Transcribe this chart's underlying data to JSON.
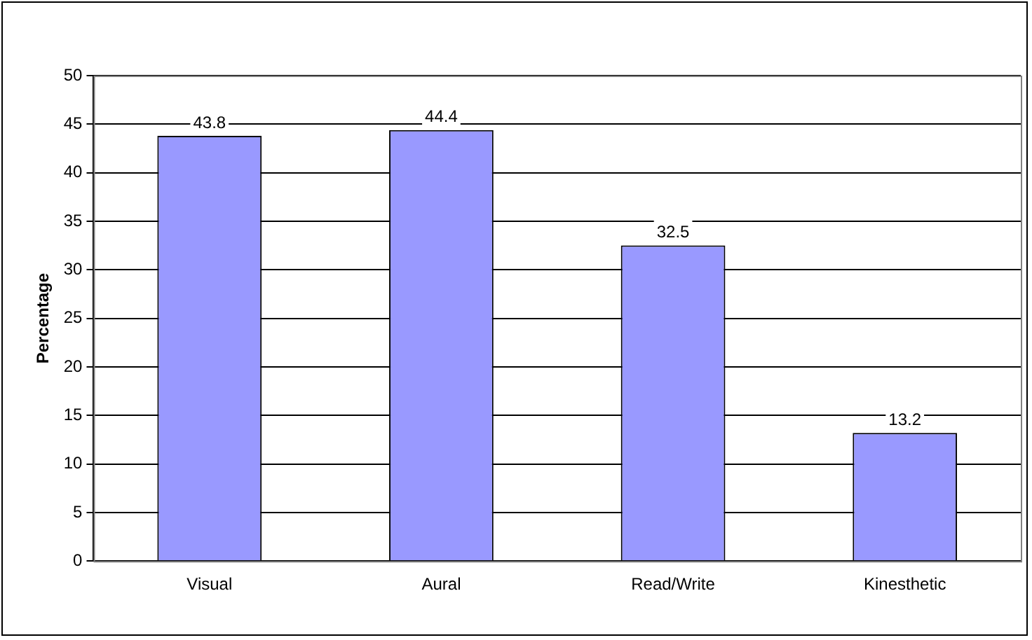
{
  "chart_data": {
    "type": "bar",
    "ylabel": "Percentage",
    "categories": [
      "Visual",
      "Aural",
      "Read/Write",
      "Kinesthetic"
    ],
    "values": [
      43.8,
      44.4,
      32.5,
      13.2
    ],
    "color": "#9999ff",
    "ylim": [
      0,
      50
    ],
    "yticks": [
      0,
      5,
      10,
      15,
      20,
      25,
      30,
      35,
      40,
      45,
      50
    ],
    "grid": "y",
    "legend": false,
    "data_labels": true
  }
}
